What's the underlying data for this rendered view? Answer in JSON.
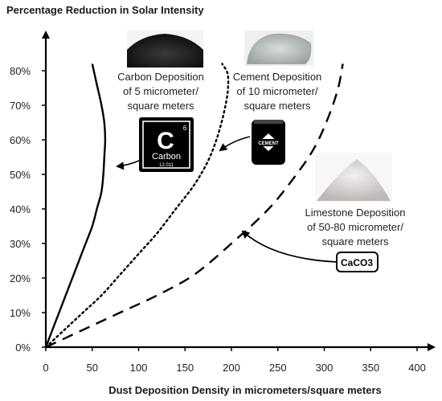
{
  "chart_data": {
    "type": "line",
    "title": "Percentage Reduction in Solar Intensity",
    "xlabel": "Dust Deposition Density in micrometers/square meters",
    "ylabel": "",
    "xlim": [
      0,
      420
    ],
    "ylim": [
      0,
      85
    ],
    "x_ticks": [
      0,
      50,
      100,
      150,
      200,
      250,
      300,
      350,
      400
    ],
    "y_ticks": [
      0,
      10,
      20,
      30,
      40,
      50,
      60,
      70,
      80
    ],
    "y_tick_labels": [
      "0%",
      "10%",
      "20%",
      "30%",
      "40%",
      "50%",
      "60%",
      "70%",
      "80%"
    ],
    "x_tick_labels": [
      "0",
      "50",
      "100",
      "150",
      "200",
      "250",
      "300",
      "350",
      "400"
    ],
    "grid": false,
    "series": [
      {
        "style": "solid",
        "x": [
          0,
          10,
          20,
          30,
          40,
          50,
          55,
          60,
          62,
          63,
          64,
          63,
          60,
          55,
          50
        ],
        "y": [
          0,
          7,
          14,
          21,
          28,
          35,
          40,
          45,
          50,
          55,
          60,
          65,
          70,
          76,
          82
        ]
      },
      {
        "style": "dotted",
        "x": [
          0,
          20,
          40,
          60,
          80,
          100,
          120,
          140,
          160,
          175,
          185,
          192,
          196,
          196,
          190
        ],
        "y": [
          0,
          5,
          10,
          15,
          21,
          27,
          33,
          40,
          47,
          54,
          61,
          68,
          74,
          79,
          82
        ]
      },
      {
        "style": "dashed",
        "x": [
          0,
          40,
          80,
          120,
          160,
          200,
          240,
          270,
          290,
          305,
          315,
          320
        ],
        "y": [
          0,
          5,
          10,
          15,
          21,
          30,
          40,
          50,
          58,
          67,
          75,
          82
        ]
      }
    ],
    "annotations": [
      {
        "lines": [
          "Carbon Deposition",
          "of 5 micrometer/",
          "square meters"
        ]
      },
      {
        "lines": [
          "Cement Deposition",
          "of 10 micrometer/",
          "square meters"
        ]
      },
      {
        "lines": [
          "Limestone Deposition",
          "of 50-80 micrometer/",
          "square meters"
        ]
      }
    ],
    "badges": {
      "carbon": {
        "symbol": "C",
        "number": "6",
        "name": "Carbon",
        "mass": "12.011"
      },
      "cement": {
        "label": "CEMENT"
      },
      "limestone": {
        "label": "CaCO3"
      }
    },
    "colors": {
      "axis": "#000000",
      "line": "#000000",
      "text": "#222222"
    }
  }
}
